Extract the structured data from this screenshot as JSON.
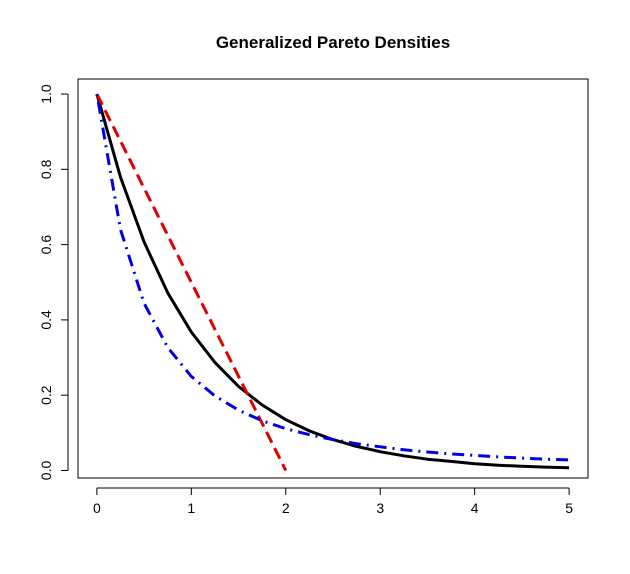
{
  "chart_data": {
    "type": "line",
    "title": "Generalized Pareto Densities",
    "xlabel": "",
    "ylabel": "",
    "xlim": [
      -0.2,
      5.2
    ],
    "ylim": [
      -0.02,
      1.04
    ],
    "x_ticks": [
      "0",
      "1",
      "2",
      "3",
      "4",
      "5"
    ],
    "y_ticks": [
      "0.0",
      "0.2",
      "0.4",
      "0.6",
      "0.8",
      "1.0"
    ],
    "legend": "none",
    "grid": false,
    "series": [
      {
        "color": "#000000",
        "style": "solid",
        "x": [
          0,
          0.25,
          0.5,
          0.75,
          1,
          1.25,
          1.5,
          1.75,
          2,
          2.25,
          2.5,
          2.75,
          3,
          3.25,
          3.5,
          3.75,
          4,
          4.25,
          4.5,
          4.75,
          5
        ],
        "y": [
          1,
          0.779,
          0.607,
          0.472,
          0.368,
          0.287,
          0.223,
          0.174,
          0.135,
          0.105,
          0.082,
          0.064,
          0.05,
          0.039,
          0.03,
          0.024,
          0.018,
          0.014,
          0.011,
          0.009,
          0.007
        ]
      },
      {
        "color": "#e00000",
        "style": "dashed",
        "x": [
          0,
          0.25,
          0.5,
          0.75,
          1,
          1.25,
          1.5,
          1.75,
          2
        ],
        "y": [
          1,
          0.875,
          0.75,
          0.625,
          0.5,
          0.375,
          0.25,
          0.125,
          0
        ]
      },
      {
        "color": "#0000e0",
        "style": "dotdash",
        "x": [
          0,
          0.25,
          0.5,
          0.75,
          1,
          1.25,
          1.5,
          1.75,
          2,
          2.25,
          2.5,
          2.75,
          3,
          3.25,
          3.5,
          3.75,
          4,
          4.25,
          4.5,
          4.75,
          5
        ],
        "y": [
          1,
          0.64,
          0.444,
          0.327,
          0.25,
          0.198,
          0.16,
          0.132,
          0.111,
          0.095,
          0.082,
          0.071,
          0.063,
          0.055,
          0.049,
          0.044,
          0.04,
          0.036,
          0.033,
          0.03,
          0.028
        ]
      }
    ]
  }
}
